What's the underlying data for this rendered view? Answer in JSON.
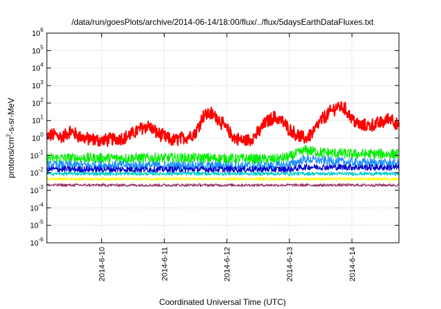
{
  "chart_data": {
    "type": "line",
    "title": "/data/run/goesPlots/archive/2014-06-14/18:00/flux/../flux/5daysEarthDataFluxes.txt",
    "xlabel": "Coordinated Universal Time (UTC)",
    "ylabel": {
      "prefix": "protons/cm",
      "exponent": "2",
      "suffix": "-s-sr-MeV"
    },
    "y_scale": "log",
    "ylim": [
      1e-06,
      1000000.0
    ],
    "xlim": [
      "2014-06-09T03:00",
      "2014-06-14T18:00"
    ],
    "grid": true,
    "y_ticks": [
      {
        "base": "10",
        "exp": "-6",
        "value": 1e-06
      },
      {
        "base": "10",
        "exp": "-5",
        "value": 1e-05
      },
      {
        "base": "10",
        "exp": "-4",
        "value": 0.0001
      },
      {
        "base": "10",
        "exp": "-3",
        "value": 0.001
      },
      {
        "base": "10",
        "exp": "-2",
        "value": 0.01
      },
      {
        "base": "10",
        "exp": "-1",
        "value": 0.1
      },
      {
        "base": "10",
        "exp": "0",
        "value": 1
      },
      {
        "base": "10",
        "exp": "1",
        "value": 10
      },
      {
        "base": "10",
        "exp": "2",
        "value": 100
      },
      {
        "base": "10",
        "exp": "3",
        "value": 1000
      },
      {
        "base": "10",
        "exp": "4",
        "value": 10000
      },
      {
        "base": "10",
        "exp": "5",
        "value": 100000
      },
      {
        "base": "10",
        "exp": "6",
        "value": 1000000
      }
    ],
    "x_ticks": [
      {
        "label": "2014-6-10",
        "value": "2014-06-10T00:00"
      },
      {
        "label": "2014-6-11",
        "value": "2014-06-11T00:00"
      },
      {
        "label": "2014-6-12",
        "value": "2014-06-12T00:00"
      },
      {
        "label": "2014-6-13",
        "value": "2014-06-13T00:00"
      },
      {
        "label": "2014-6-14",
        "value": "2014-06-14T00:00"
      }
    ],
    "series": [
      {
        "color": "#ff0000",
        "noise": 0.35,
        "x": [
          "2014-06-09T03:00",
          "2014-06-09T06:00",
          "2014-06-09T09:00",
          "2014-06-09T12:00",
          "2014-06-09T15:00",
          "2014-06-09T18:00",
          "2014-06-09T21:00",
          "2014-06-10T00:00",
          "2014-06-10T03:00",
          "2014-06-10T06:00",
          "2014-06-10T09:00",
          "2014-06-10T12:00",
          "2014-06-10T15:00",
          "2014-06-10T18:00",
          "2014-06-10T21:00",
          "2014-06-11T00:00",
          "2014-06-11T03:00",
          "2014-06-11T06:00",
          "2014-06-11T09:00",
          "2014-06-11T12:00",
          "2014-06-11T15:00",
          "2014-06-11T18:00",
          "2014-06-11T21:00",
          "2014-06-12T00:00",
          "2014-06-12T03:00",
          "2014-06-12T06:00",
          "2014-06-12T09:00",
          "2014-06-12T12:00",
          "2014-06-12T15:00",
          "2014-06-12T18:00",
          "2014-06-12T21:00",
          "2014-06-13T00:00",
          "2014-06-13T03:00",
          "2014-06-13T06:00",
          "2014-06-13T09:00",
          "2014-06-13T12:00",
          "2014-06-13T15:00",
          "2014-06-13T18:00",
          "2014-06-13T21:00",
          "2014-06-14T00:00",
          "2014-06-14T03:00",
          "2014-06-14T06:00",
          "2014-06-14T09:00",
          "2014-06-14T12:00",
          "2014-06-14T15:00",
          "2014-06-14T18:00"
        ],
        "values": [
          1.2,
          1.6,
          1.1,
          2.5,
          1.3,
          0.9,
          0.8,
          0.7,
          0.8,
          0.9,
          1.1,
          1.8,
          3.5,
          5,
          2,
          1.2,
          0.7,
          0.9,
          1.2,
          2,
          20,
          25,
          12,
          3,
          1,
          0.7,
          0.8,
          2,
          8,
          15,
          10,
          3,
          1.5,
          0.9,
          2,
          10,
          25,
          60,
          55,
          12,
          5,
          5,
          6,
          8,
          15,
          4
        ]
      },
      {
        "color": "#00ee00",
        "noise": 0.3,
        "x": [
          "2014-06-09T03:00",
          "2014-06-11T15:00",
          "2014-06-12T18:00",
          "2014-06-13T00:00",
          "2014-06-13T06:00",
          "2014-06-13T12:00",
          "2014-06-14T00:00",
          "2014-06-14T18:00"
        ],
        "values": [
          0.07,
          0.07,
          0.06,
          0.08,
          0.2,
          0.15,
          0.12,
          0.12
        ]
      },
      {
        "color": "#1e90ff",
        "noise": 0.25,
        "x": [
          "2014-06-09T03:00",
          "2014-06-12T18:00",
          "2014-06-13T00:00",
          "2014-06-13T06:00",
          "2014-06-14T00:00",
          "2014-06-14T18:00"
        ],
        "values": [
          0.028,
          0.025,
          0.03,
          0.06,
          0.04,
          0.035
        ]
      },
      {
        "color": "#0000cc",
        "noise": 0.18,
        "x": [
          "2014-06-09T03:00",
          "2014-06-13T00:00",
          "2014-06-13T06:00",
          "2014-06-14T18:00"
        ],
        "values": [
          0.016,
          0.016,
          0.022,
          0.02
        ]
      },
      {
        "color": "#00cccc",
        "noise": 0.1,
        "x": [
          "2014-06-09T03:00",
          "2014-06-14T18:00"
        ],
        "values": [
          0.009,
          0.009
        ]
      },
      {
        "color": "#ffff00",
        "noise": 0.08,
        "x": [
          "2014-06-09T03:00",
          "2014-06-14T18:00"
        ],
        "values": [
          0.0045,
          0.0045
        ]
      },
      {
        "color": "#993366",
        "noise": 0.08,
        "x": [
          "2014-06-09T03:00",
          "2014-06-14T18:00"
        ],
        "values": [
          0.002,
          0.002
        ]
      }
    ]
  }
}
